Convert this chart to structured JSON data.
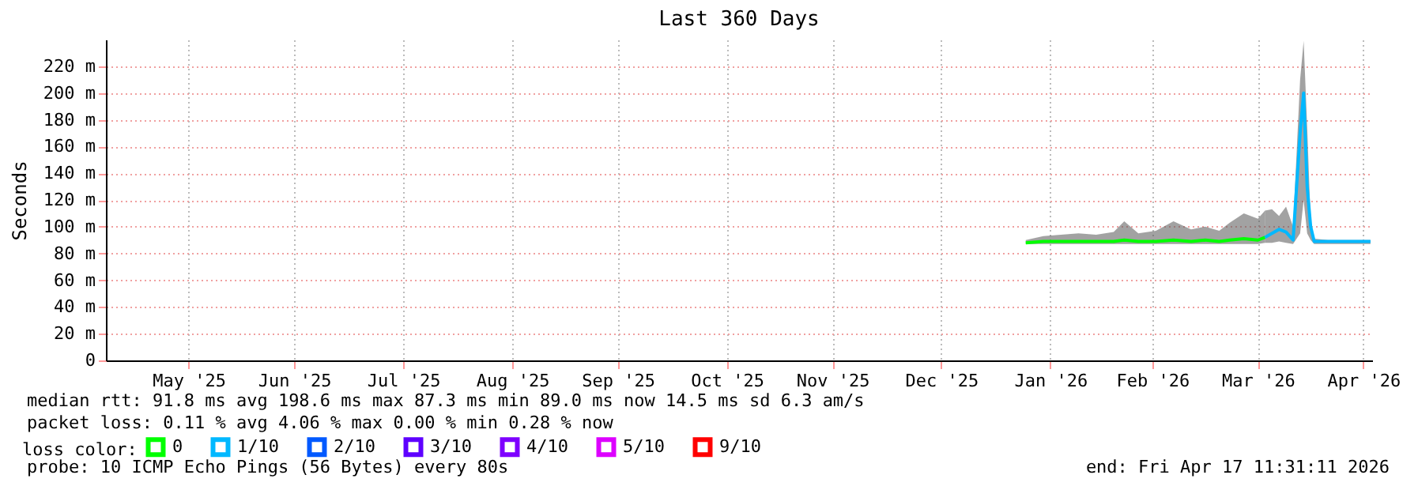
{
  "chart_data": {
    "type": "line",
    "title": "Last 360 Days",
    "ylabel": "Seconds",
    "legend_title": "loss color:",
    "legend": "bottom",
    "grid": true,
    "xlim": [
      "2025-04-22T11:31",
      "2026-04-17T11:31"
    ],
    "xticks": [
      {
        "value": "2025-05-16",
        "label": "May '25"
      },
      {
        "value": "2025-06-15",
        "label": "Jun '25"
      },
      {
        "value": "2025-07-16",
        "label": "Jul '25"
      },
      {
        "value": "2025-08-16",
        "label": "Aug '25"
      },
      {
        "value": "2025-09-15",
        "label": "Sep '25"
      },
      {
        "value": "2025-10-16",
        "label": "Oct '25"
      },
      {
        "value": "2025-11-15",
        "label": "Nov '25"
      },
      {
        "value": "2025-12-16",
        "label": "Dec '25"
      },
      {
        "value": "2026-01-16",
        "label": "Jan '26"
      },
      {
        "value": "2026-02-14",
        "label": "Feb '26"
      },
      {
        "value": "2026-03-16",
        "label": "Mar '26"
      },
      {
        "value": "2026-04-15",
        "label": "Apr '26"
      }
    ],
    "ylim": [
      0,
      240
    ],
    "yticks": [
      0,
      {
        "value": 20,
        "label": "20 m"
      },
      {
        "value": 40,
        "label": "40 m"
      },
      {
        "value": 60,
        "label": "60 m"
      },
      {
        "value": 80,
        "label": "80 m"
      },
      {
        "value": 100,
        "label": "100 m"
      },
      {
        "value": 120,
        "label": "120 m"
      },
      {
        "value": 140,
        "label": "140 m"
      },
      {
        "value": 160,
        "label": "160 m"
      },
      {
        "value": 180,
        "label": "180 m"
      },
      {
        "value": 200,
        "label": "200 m"
      },
      {
        "value": 220,
        "label": "220 m"
      }
    ],
    "series": [
      {
        "name": "0",
        "color": "#00ff00",
        "x": [
          "2026-01-09",
          "2026-01-14",
          "2026-01-19",
          "2026-01-24",
          "2026-01-29",
          "2026-02-03",
          "2026-02-06",
          "2026-02-10",
          "2026-02-15",
          "2026-02-20",
          "2026-02-25",
          "2026-03-01",
          "2026-03-05",
          "2026-03-08",
          "2026-03-12",
          "2026-03-16",
          "2026-03-18"
        ],
        "values": [
          88,
          89,
          89,
          89,
          89,
          89,
          90,
          89,
          89,
          90,
          89,
          90,
          89,
          90,
          91,
          90,
          92
        ],
        "lower": [
          87,
          87,
          87,
          87,
          87,
          87,
          87,
          87,
          87,
          87,
          87,
          87,
          87,
          87,
          87,
          87,
          88
        ],
        "upper": [
          90,
          93,
          94,
          95,
          94,
          96,
          104,
          95,
          97,
          104,
          98,
          100,
          97,
          103,
          110,
          106,
          112
        ]
      },
      {
        "name": "1/10",
        "color": "#00b8ff",
        "x": [
          "2026-03-18",
          "2026-03-20",
          "2026-03-22",
          "2026-03-24",
          "2026-03-26",
          "2026-03-28",
          "2026-03-29",
          "2026-03-30",
          "2026-03-31",
          "2026-04-01",
          "2026-04-05",
          "2026-04-10",
          "2026-04-17"
        ],
        "values": [
          92,
          95,
          98,
          96,
          90,
          170,
          200,
          130,
          100,
          89,
          89,
          89,
          89
        ],
        "lower": [
          88,
          88,
          89,
          88,
          87,
          95,
          120,
          95,
          90,
          87,
          87,
          87,
          87
        ],
        "upper": [
          112,
          113,
          108,
          115,
          100,
          210,
          239,
          175,
          104,
          91,
          90,
          90,
          90
        ]
      },
      {
        "name": "2/10",
        "color": "#0059ff"
      },
      {
        "name": "3/10",
        "color": "#5e00ff"
      },
      {
        "name": "4/10",
        "color": "#7e00ff"
      },
      {
        "name": "5/10",
        "color": "#dd00ff"
      },
      {
        "name": "9/10",
        "color": "#ff0000"
      }
    ],
    "annotations": [
      "median rtt:  91.8 ms avg  198.6 ms max  87.3 ms min  89.0 ms now  14.5 ms sd  6.3   am/s",
      "packet loss: 0.11 % avg  4.06 % max  0.00 % min  0.28 % now",
      "probe:       10 ICMP Echo Pings (56 Bytes) every 80s",
      "end: Fri Apr 17 11:31:11 2026"
    ]
  }
}
